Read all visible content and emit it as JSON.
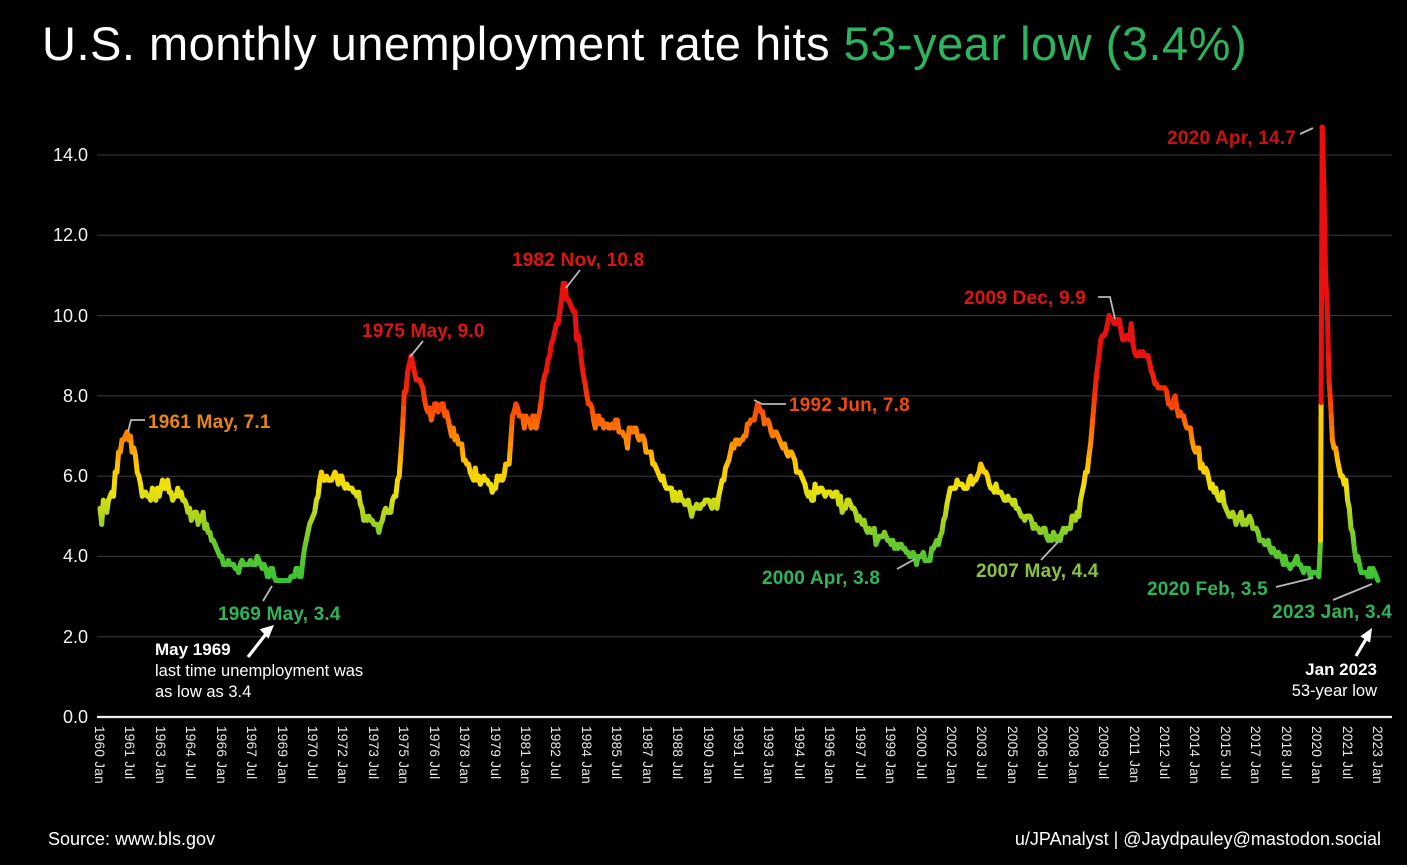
{
  "title": {
    "plain": "U.S. monthly unemployment rate hits ",
    "highlight": "53-year low (3.4%)",
    "highlight_color": "#2DB45E"
  },
  "footer": {
    "source": "Source: www.bls.gov",
    "credit": "u/JPAnalyst | @Jaydpauley@mastodon.social"
  },
  "chart_data": {
    "type": "line",
    "title": "U.S. monthly unemployment rate hits 53-year low (3.4%)",
    "xlabel": "",
    "ylabel": "",
    "ylim": [
      0,
      14.7
    ],
    "grid": "horizontal",
    "legend": "none",
    "y_ticks": {
      "values": [
        0,
        2,
        4,
        6,
        8,
        10,
        12,
        14
      ],
      "labels": [
        "0.0",
        "2.0",
        "4.0",
        "6.0",
        "8.0",
        "10.0",
        "12.0",
        "14.0"
      ]
    },
    "x_tick_labels": [
      "1960 Jan",
      "1961 Jul",
      "1963 Jan",
      "1964 Jul",
      "1966 Jan",
      "1967 Jul",
      "1969 Jan",
      "1970 Jul",
      "1972 Jan",
      "1973 Jul",
      "1975 Jan",
      "1976 Jul",
      "1978 Jan",
      "1979 Jul",
      "1981 Jan",
      "1982 Jul",
      "1984 Jan",
      "1985 Jul",
      "1987 Jan",
      "1988 Jul",
      "1990 Jan",
      "1991 Jul",
      "1993 Jan",
      "1994 Jul",
      "1996 Jan",
      "1997 Jul",
      "1999 Jan",
      "2000 Jul",
      "2002 Jan",
      "2003 Jul",
      "2005 Jan",
      "2006 Jul",
      "2008 Jan",
      "2009 Jul",
      "2011 Jan",
      "2012 Jul",
      "2014 Jan",
      "2015 Jul",
      "2017 Jan",
      "2018 Jul",
      "2020 Jan",
      "2021 Jul",
      "2023 Jan"
    ],
    "color_scale": [
      [
        3.3,
        "#34C135"
      ],
      [
        4.3,
        "#67C92E"
      ],
      [
        5.0,
        "#ABD41E"
      ],
      [
        5.7,
        "#EFE20C"
      ],
      [
        6.3,
        "#FFC400"
      ],
      [
        6.9,
        "#FF8A00"
      ],
      [
        7.6,
        "#FF5100"
      ],
      [
        8.3,
        "#F32508"
      ],
      [
        9.0,
        "#E81111"
      ],
      [
        15.0,
        "#EE0D0D"
      ]
    ],
    "series": [
      {
        "name": "U.S. monthly unemployment rate (%)",
        "start": "1960 Jan",
        "end": "2023 Jan",
        "monthly_by_year": {
          "1960": [
            5.2,
            4.8,
            5.4,
            5.2,
            5.1,
            5.4,
            5.5,
            5.6,
            5.5,
            6.1,
            6.1,
            6.6
          ],
          "1961": [
            6.6,
            6.9,
            6.9,
            7.0,
            7.1,
            6.9,
            7.0,
            6.6,
            6.7,
            6.5,
            6.1,
            6.0
          ],
          "1962": [
            5.8,
            5.5,
            5.6,
            5.6,
            5.5,
            5.5,
            5.4,
            5.7,
            5.6,
            5.4,
            5.7,
            5.5
          ],
          "1963": [
            5.7,
            5.9,
            5.7,
            5.7,
            5.9,
            5.6,
            5.6,
            5.4,
            5.5,
            5.5,
            5.7,
            5.5
          ],
          "1964": [
            5.6,
            5.4,
            5.4,
            5.3,
            5.1,
            5.2,
            4.9,
            5.0,
            5.1,
            5.1,
            4.8,
            5.0
          ],
          "1965": [
            4.9,
            5.1,
            4.7,
            4.8,
            4.6,
            4.6,
            4.4,
            4.4,
            4.3,
            4.2,
            4.1,
            4.0
          ],
          "1966": [
            4.0,
            3.8,
            3.8,
            3.8,
            3.9,
            3.8,
            3.8,
            3.8,
            3.7,
            3.7,
            3.6,
            3.8
          ],
          "1967": [
            3.9,
            3.8,
            3.8,
            3.8,
            3.8,
            3.9,
            3.8,
            3.8,
            3.8,
            4.0,
            3.9,
            3.8
          ],
          "1968": [
            3.7,
            3.8,
            3.7,
            3.5,
            3.5,
            3.7,
            3.7,
            3.5,
            3.4,
            3.4,
            3.4,
            3.4
          ],
          "1969": [
            3.4,
            3.4,
            3.4,
            3.4,
            3.4,
            3.5,
            3.5,
            3.5,
            3.7,
            3.7,
            3.5,
            3.5
          ],
          "1970": [
            3.9,
            4.2,
            4.4,
            4.6,
            4.8,
            4.9,
            5.0,
            5.1,
            5.4,
            5.5,
            5.9,
            6.1
          ],
          "1971": [
            5.9,
            5.9,
            6.0,
            5.9,
            5.9,
            5.9,
            6.0,
            6.1,
            6.0,
            5.8,
            6.0,
            6.0
          ],
          "1972": [
            5.8,
            5.7,
            5.8,
            5.7,
            5.7,
            5.7,
            5.6,
            5.6,
            5.5,
            5.6,
            5.3,
            5.2
          ],
          "1973": [
            4.9,
            5.0,
            4.9,
            5.0,
            4.9,
            4.9,
            4.8,
            4.8,
            4.8,
            4.6,
            4.8,
            4.9
          ],
          "1974": [
            5.1,
            5.2,
            5.1,
            5.1,
            5.1,
            5.4,
            5.5,
            5.5,
            5.9,
            6.0,
            6.6,
            7.2
          ],
          "1975": [
            8.1,
            8.1,
            8.6,
            8.8,
            9.0,
            8.8,
            8.6,
            8.4,
            8.4,
            8.4,
            8.3,
            8.2
          ],
          "1976": [
            7.9,
            7.7,
            7.6,
            7.7,
            7.4,
            7.6,
            7.8,
            7.8,
            7.6,
            7.7,
            7.8,
            7.8
          ],
          "1977": [
            7.5,
            7.6,
            7.4,
            7.2,
            7.0,
            7.2,
            6.9,
            7.0,
            6.8,
            6.8,
            6.8,
            6.4
          ],
          "1978": [
            6.4,
            6.3,
            6.3,
            6.1,
            6.0,
            5.9,
            6.2,
            5.9,
            6.0,
            5.8,
            5.9,
            6.0
          ],
          "1979": [
            5.9,
            5.9,
            5.8,
            5.8,
            5.6,
            5.7,
            5.7,
            6.0,
            5.9,
            6.0,
            5.9,
            6.0
          ],
          "1980": [
            6.3,
            6.3,
            6.3,
            6.9,
            7.5,
            7.6,
            7.8,
            7.7,
            7.5,
            7.5,
            7.5,
            7.2
          ],
          "1981": [
            7.5,
            7.4,
            7.4,
            7.2,
            7.5,
            7.5,
            7.2,
            7.4,
            7.6,
            7.9,
            8.3,
            8.5
          ],
          "1982": [
            8.6,
            8.9,
            9.0,
            9.3,
            9.4,
            9.6,
            9.8,
            9.8,
            10.1,
            10.4,
            10.8,
            10.8
          ],
          "1983": [
            10.4,
            10.4,
            10.3,
            10.2,
            10.1,
            10.1,
            9.4,
            9.5,
            9.2,
            8.8,
            8.5,
            8.3
          ],
          "1984": [
            8.0,
            7.8,
            7.8,
            7.7,
            7.4,
            7.2,
            7.5,
            7.5,
            7.3,
            7.4,
            7.2,
            7.3
          ],
          "1985": [
            7.3,
            7.2,
            7.2,
            7.3,
            7.2,
            7.4,
            7.4,
            7.1,
            7.1,
            7.1,
            7.0,
            7.0
          ],
          "1986": [
            6.7,
            7.2,
            7.2,
            7.1,
            7.2,
            7.2,
            7.0,
            6.9,
            7.0,
            7.0,
            6.9,
            6.6
          ],
          "1987": [
            6.6,
            6.6,
            6.6,
            6.3,
            6.3,
            6.2,
            6.1,
            6.0,
            5.9,
            6.0,
            5.8,
            5.7
          ],
          "1988": [
            5.7,
            5.7,
            5.7,
            5.4,
            5.6,
            5.4,
            5.4,
            5.6,
            5.4,
            5.4,
            5.3,
            5.3
          ],
          "1989": [
            5.4,
            5.2,
            5.0,
            5.2,
            5.2,
            5.3,
            5.2,
            5.2,
            5.3,
            5.3,
            5.4,
            5.4
          ],
          "1990": [
            5.4,
            5.3,
            5.2,
            5.4,
            5.4,
            5.2,
            5.5,
            5.7,
            5.9,
            5.9,
            6.2,
            6.3
          ],
          "1991": [
            6.4,
            6.6,
            6.8,
            6.7,
            6.9,
            6.9,
            6.8,
            6.9,
            6.9,
            7.0,
            7.0,
            7.3
          ],
          "1992": [
            7.3,
            7.4,
            7.4,
            7.4,
            7.6,
            7.8,
            7.7,
            7.6,
            7.6,
            7.3,
            7.4,
            7.4
          ],
          "1993": [
            7.3,
            7.1,
            7.0,
            7.1,
            7.1,
            7.0,
            6.9,
            6.8,
            6.7,
            6.8,
            6.6,
            6.5
          ],
          "1994": [
            6.6,
            6.6,
            6.5,
            6.4,
            6.1,
            6.1,
            6.1,
            6.0,
            5.9,
            5.8,
            5.6,
            5.5
          ],
          "1995": [
            5.6,
            5.4,
            5.4,
            5.8,
            5.6,
            5.6,
            5.7,
            5.7,
            5.6,
            5.5,
            5.6,
            5.6
          ],
          "1996": [
            5.6,
            5.5,
            5.5,
            5.6,
            5.6,
            5.3,
            5.5,
            5.1,
            5.2,
            5.2,
            5.4,
            5.4
          ],
          "1997": [
            5.3,
            5.2,
            5.2,
            5.1,
            4.9,
            5.0,
            4.9,
            4.8,
            4.9,
            4.7,
            4.6,
            4.7
          ],
          "1998": [
            4.6,
            4.6,
            4.7,
            4.3,
            4.4,
            4.5,
            4.5,
            4.5,
            4.6,
            4.5,
            4.4,
            4.4
          ],
          "1999": [
            4.3,
            4.4,
            4.2,
            4.3,
            4.2,
            4.3,
            4.3,
            4.2,
            4.2,
            4.1,
            4.1,
            4.0
          ],
          "2000": [
            4.0,
            4.1,
            4.0,
            3.8,
            4.0,
            4.0,
            4.0,
            4.1,
            3.9,
            3.9,
            3.9,
            3.9
          ],
          "2001": [
            4.2,
            4.2,
            4.3,
            4.4,
            4.3,
            4.5,
            4.6,
            4.9,
            5.0,
            5.3,
            5.5,
            5.7
          ],
          "2002": [
            5.7,
            5.7,
            5.7,
            5.9,
            5.8,
            5.8,
            5.8,
            5.7,
            5.7,
            5.7,
            5.9,
            6.0
          ],
          "2003": [
            5.8,
            5.9,
            5.9,
            6.0,
            6.1,
            6.3,
            6.2,
            6.1,
            6.1,
            6.0,
            5.8,
            5.7
          ],
          "2004": [
            5.7,
            5.6,
            5.8,
            5.6,
            5.6,
            5.6,
            5.5,
            5.4,
            5.4,
            5.5,
            5.4,
            5.4
          ],
          "2005": [
            5.3,
            5.4,
            5.2,
            5.2,
            5.1,
            5.0,
            5.0,
            4.9,
            5.0,
            5.0,
            5.0,
            4.9
          ],
          "2006": [
            4.7,
            4.8,
            4.7,
            4.7,
            4.6,
            4.6,
            4.7,
            4.7,
            4.5,
            4.4,
            4.5,
            4.4
          ],
          "2007": [
            4.6,
            4.5,
            4.4,
            4.5,
            4.4,
            4.6,
            4.7,
            4.6,
            4.7,
            4.7,
            4.7,
            5.0
          ],
          "2008": [
            5.0,
            4.9,
            5.1,
            5.0,
            5.4,
            5.6,
            5.8,
            6.1,
            6.1,
            6.5,
            6.8,
            7.3
          ],
          "2009": [
            7.8,
            8.3,
            8.7,
            9.0,
            9.4,
            9.5,
            9.5,
            9.6,
            9.8,
            10.0,
            9.9,
            9.9
          ],
          "2010": [
            9.8,
            9.8,
            9.9,
            9.9,
            9.6,
            9.4,
            9.4,
            9.5,
            9.5,
            9.4,
            9.8,
            9.3
          ],
          "2011": [
            9.1,
            9.0,
            9.0,
            9.1,
            9.0,
            9.1,
            9.0,
            9.0,
            9.0,
            8.8,
            8.6,
            8.5
          ],
          "2012": [
            8.3,
            8.3,
            8.2,
            8.2,
            8.2,
            8.2,
            8.2,
            8.1,
            7.8,
            7.8,
            7.7,
            7.9
          ],
          "2013": [
            8.0,
            7.7,
            7.5,
            7.6,
            7.5,
            7.5,
            7.3,
            7.2,
            7.2,
            7.2,
            6.9,
            6.7
          ],
          "2014": [
            6.6,
            6.7,
            6.7,
            6.2,
            6.3,
            6.1,
            6.2,
            6.1,
            5.9,
            5.7,
            5.8,
            5.6
          ],
          "2015": [
            5.7,
            5.5,
            5.4,
            5.4,
            5.6,
            5.3,
            5.2,
            5.1,
            5.0,
            5.0,
            5.1,
            5.0
          ],
          "2016": [
            4.8,
            4.9,
            5.0,
            5.1,
            4.8,
            4.9,
            4.8,
            4.9,
            5.0,
            4.9,
            4.7,
            4.7
          ],
          "2017": [
            4.7,
            4.6,
            4.4,
            4.4,
            4.4,
            4.3,
            4.3,
            4.4,
            4.2,
            4.1,
            4.2,
            4.1
          ],
          "2018": [
            4.0,
            4.1,
            4.0,
            4.0,
            3.8,
            4.0,
            3.8,
            3.8,
            3.7,
            3.8,
            3.8,
            3.9
          ],
          "2019": [
            4.0,
            3.8,
            3.8,
            3.7,
            3.6,
            3.7,
            3.7,
            3.7,
            3.5,
            3.6,
            3.6,
            3.6
          ],
          "2020": [
            3.6,
            3.5,
            4.4,
            14.7,
            13.2,
            11.0,
            10.2,
            8.4,
            7.8,
            6.9,
            6.7,
            6.7
          ],
          "2021": [
            6.4,
            6.2,
            6.0,
            6.0,
            5.8,
            5.9,
            5.4,
            5.2,
            4.7,
            4.6,
            4.2,
            3.9
          ],
          "2022": [
            4.0,
            3.8,
            3.6,
            3.6,
            3.6,
            3.6,
            3.5,
            3.7,
            3.5,
            3.7,
            3.6,
            3.5
          ],
          "2023": [
            3.4
          ]
        }
      }
    ],
    "annotations": [
      {
        "label": "1961 May, 7.1",
        "month": "1961-05",
        "value": 7.1,
        "color": "#E8860D"
      },
      {
        "label": "1975 May, 9.0",
        "month": "1975-05",
        "value": 9.0,
        "color": "#DC1414"
      },
      {
        "label": "1982 Nov, 10.8",
        "month": "1982-11",
        "value": 10.8,
        "color": "#DC1414"
      },
      {
        "label": "1992 Jun, 7.8",
        "month": "1992-06",
        "value": 7.8,
        "color": "#EF4A0E"
      },
      {
        "label": "2009 Dec, 9.9",
        "month": "2009-12",
        "value": 9.9,
        "color": "#DC1414"
      },
      {
        "label": "2020 Apr, 14.7",
        "month": "2020-04",
        "value": 14.7,
        "color": "#C81212"
      },
      {
        "label": "1969 May, 3.4",
        "month": "1969-05",
        "value": 3.4,
        "color": "#2FB457"
      },
      {
        "label": "2000 Apr, 3.8",
        "month": "2000-04",
        "value": 3.8,
        "color": "#2FB457"
      },
      {
        "label": "2007 May, 4.4",
        "month": "2007-05",
        "value": 4.4,
        "color": "#8DC23C"
      },
      {
        "label": "2020 Feb, 3.5",
        "month": "2020-02",
        "value": 3.5,
        "color": "#2FB457"
      },
      {
        "label": "2023 Jan, 3.4",
        "month": "2023-01",
        "value": 3.4,
        "color": "#2FB457"
      }
    ],
    "notes": [
      {
        "title": "May 1969",
        "lines": [
          "last time unemployment was",
          "as low as 3.4"
        ]
      },
      {
        "title": "Jan 2023",
        "lines": [
          "53-year low"
        ]
      }
    ]
  }
}
